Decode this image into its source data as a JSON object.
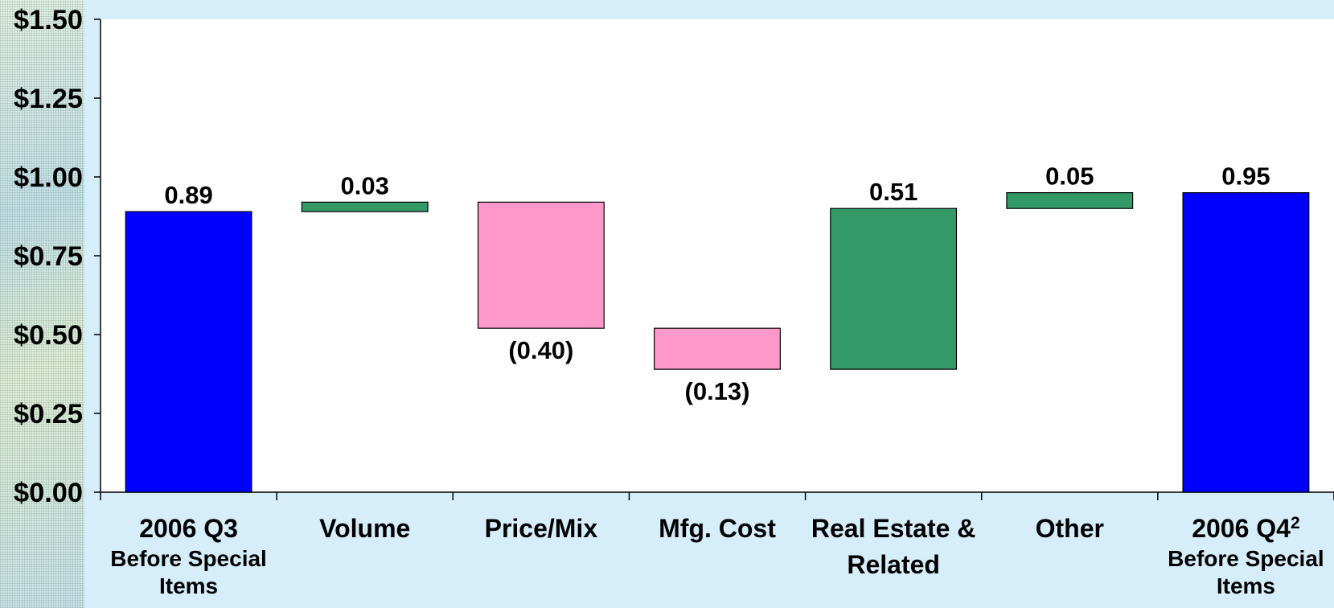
{
  "chart_data": {
    "type": "bar",
    "subtype": "waterfall",
    "title": "",
    "xlabel": "",
    "ylabel": "",
    "ylim": [
      0,
      1.5
    ],
    "grid": false,
    "y_ticks": [
      {
        "value": 0.0,
        "label": "$0.00"
      },
      {
        "value": 0.25,
        "label": "$0.25"
      },
      {
        "value": 0.5,
        "label": "$0.50"
      },
      {
        "value": 0.75,
        "label": "$0.75"
      },
      {
        "value": 1.0,
        "label": "$1.00"
      },
      {
        "value": 1.25,
        "label": "$1.25"
      },
      {
        "value": 1.5,
        "label": "$1.50"
      }
    ],
    "bars": [
      {
        "category": "2006 Q3",
        "sublabel": "Before Special Items",
        "sup": "",
        "kind": "total",
        "start": 0,
        "end": 0.89,
        "label": "0.89",
        "color": "#0000ff"
      },
      {
        "category": "Volume",
        "sublabel": "",
        "sup": "",
        "kind": "increase",
        "start": 0.89,
        "end": 0.92,
        "label": "0.03",
        "color": "#339966"
      },
      {
        "category": "Price/Mix",
        "sublabel": "",
        "sup": "",
        "kind": "decrease",
        "start": 0.92,
        "end": 0.52,
        "label": "(0.40)",
        "color": "#ff99cc"
      },
      {
        "category": "Mfg. Cost",
        "sublabel": "",
        "sup": "",
        "kind": "decrease",
        "start": 0.52,
        "end": 0.39,
        "label": "(0.13)",
        "color": "#ff99cc"
      },
      {
        "category": "Real Estate & Related",
        "sublabel": "",
        "sup": "",
        "kind": "increase",
        "start": 0.39,
        "end": 0.9,
        "label": "0.51",
        "color": "#339966"
      },
      {
        "category": "Other",
        "sublabel": "",
        "sup": "",
        "kind": "increase",
        "start": 0.9,
        "end": 0.95,
        "label": "0.05",
        "color": "#339966"
      },
      {
        "category": "2006 Q4",
        "sublabel": "Before Special Items",
        "sup": "2",
        "kind": "total",
        "start": 0,
        "end": 0.95,
        "label": "0.95",
        "color": "#0000ff"
      }
    ]
  }
}
